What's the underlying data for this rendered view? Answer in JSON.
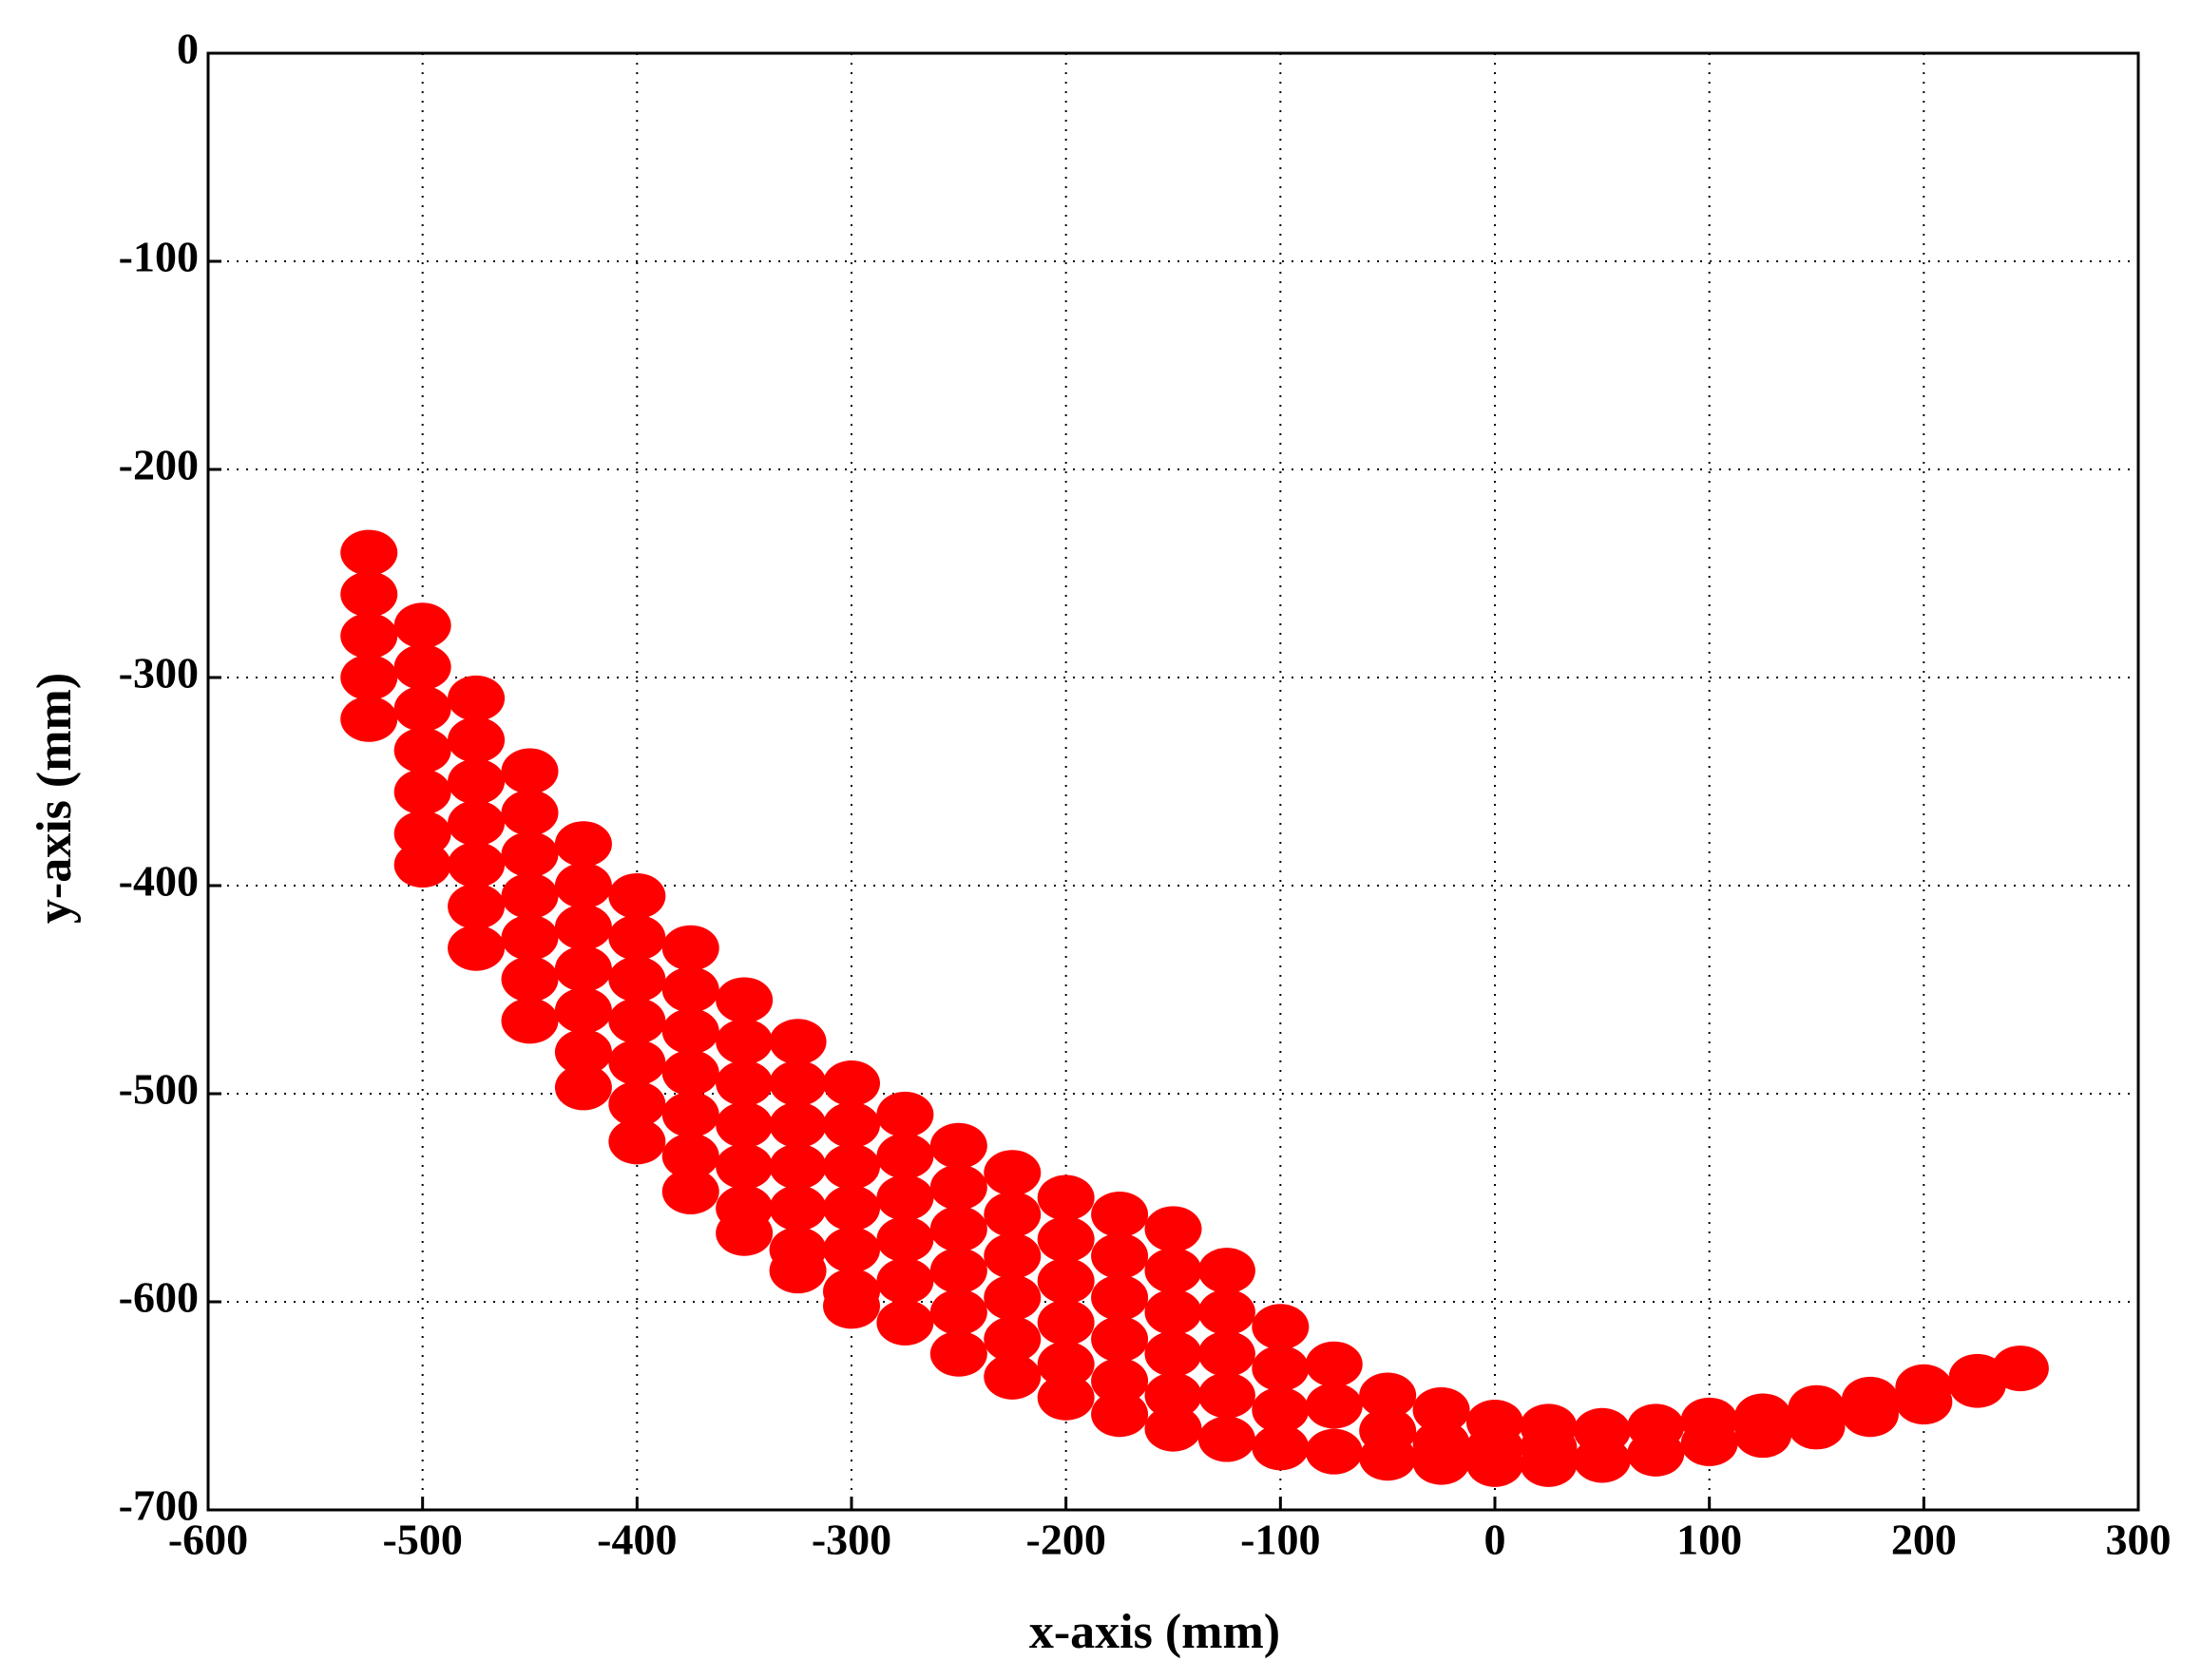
{
  "chart_data": {
    "type": "scatter",
    "xlabel": "x-axis (mm)",
    "ylabel": "y-axis (mm)",
    "xlim": [
      -600,
      300
    ],
    "xticks": [
      -600,
      -500,
      -400,
      -300,
      -200,
      -100,
      0,
      100,
      200,
      300
    ],
    "ylim": [
      -700,
      0
    ],
    "yticks": [
      -700,
      -600,
      -500,
      -400,
      -300,
      -200,
      -100,
      0
    ],
    "grid": true,
    "series": [
      {
        "color": "#ff0000",
        "x": [
          -525,
          -525,
          -525,
          -525,
          -525,
          -500,
          -500,
          -500,
          -500,
          -500,
          -500,
          -500,
          -475,
          -475,
          -475,
          -475,
          -475,
          -475,
          -475,
          -450,
          -450,
          -450,
          -450,
          -450,
          -450,
          -450,
          -425,
          -425,
          -425,
          -425,
          -425,
          -425,
          -425,
          -400,
          -400,
          -400,
          -400,
          -400,
          -400,
          -400,
          -375,
          -375,
          -375,
          -375,
          -375,
          -375,
          -375,
          -350,
          -350,
          -350,
          -350,
          -350,
          -350,
          -350,
          -325,
          -325,
          -325,
          -325,
          -325,
          -325,
          -325,
          -300,
          -300,
          -300,
          -300,
          -300,
          -300,
          -300,
          -275,
          -275,
          -275,
          -275,
          -275,
          -275,
          -250,
          -250,
          -250,
          -250,
          -250,
          -250,
          -225,
          -225,
          -225,
          -225,
          -225,
          -225,
          -200,
          -200,
          -200,
          -200,
          -200,
          -200,
          -175,
          -175,
          -175,
          -175,
          -175,
          -175,
          -150,
          -150,
          -150,
          -150,
          -150,
          -150,
          -125,
          -125,
          -125,
          -125,
          -125,
          -100,
          -100,
          -100,
          -100,
          -75,
          -75,
          -75,
          -50,
          -50,
          -50,
          -25,
          -25,
          -25,
          0,
          0,
          0,
          25,
          25,
          25,
          50,
          50,
          75,
          75,
          100,
          100,
          125,
          125,
          150,
          150,
          175,
          175,
          200,
          200,
          225,
          225,
          245
        ],
        "y": [
          -240,
          -260,
          -280,
          -300,
          -320,
          -275,
          -295,
          -315,
          -335,
          -355,
          -375,
          -390,
          -310,
          -330,
          -350,
          -370,
          -390,
          -410,
          -430,
          -345,
          -365,
          -385,
          -405,
          -425,
          -445,
          -465,
          -380,
          -400,
          -420,
          -440,
          -460,
          -480,
          -497,
          -405,
          -425,
          -445,
          -465,
          -485,
          -505,
          -523,
          -430,
          -450,
          -470,
          -490,
          -510,
          -530,
          -547,
          -455,
          -475,
          -495,
          -515,
          -535,
          -555,
          -567,
          -475,
          -495,
          -515,
          -535,
          -555,
          -575,
          -585,
          -495,
          -515,
          -535,
          -555,
          -575,
          -595,
          -602,
          -510,
          -530,
          -550,
          -570,
          -590,
          -610,
          -525,
          -545,
          -565,
          -585,
          -605,
          -625,
          -538,
          -558,
          -578,
          -598,
          -618,
          -636,
          -550,
          -570,
          -590,
          -610,
          -630,
          -646,
          -558,
          -578,
          -598,
          -618,
          -638,
          -654,
          -565,
          -585,
          -605,
          -625,
          -645,
          -661,
          -585,
          -605,
          -625,
          -645,
          -666,
          -612,
          -632,
          -652,
          -670,
          -630,
          -650,
          -672,
          -645,
          -662,
          -675,
          -652,
          -668,
          -677,
          -658,
          -670,
          -678,
          -660,
          -670,
          -678,
          -662,
          -676,
          -660,
          -673,
          -657,
          -668,
          -655,
          -664,
          -651,
          -660,
          -647,
          -654,
          -641,
          -648,
          -636,
          -640,
          -632
        ]
      }
    ]
  }
}
